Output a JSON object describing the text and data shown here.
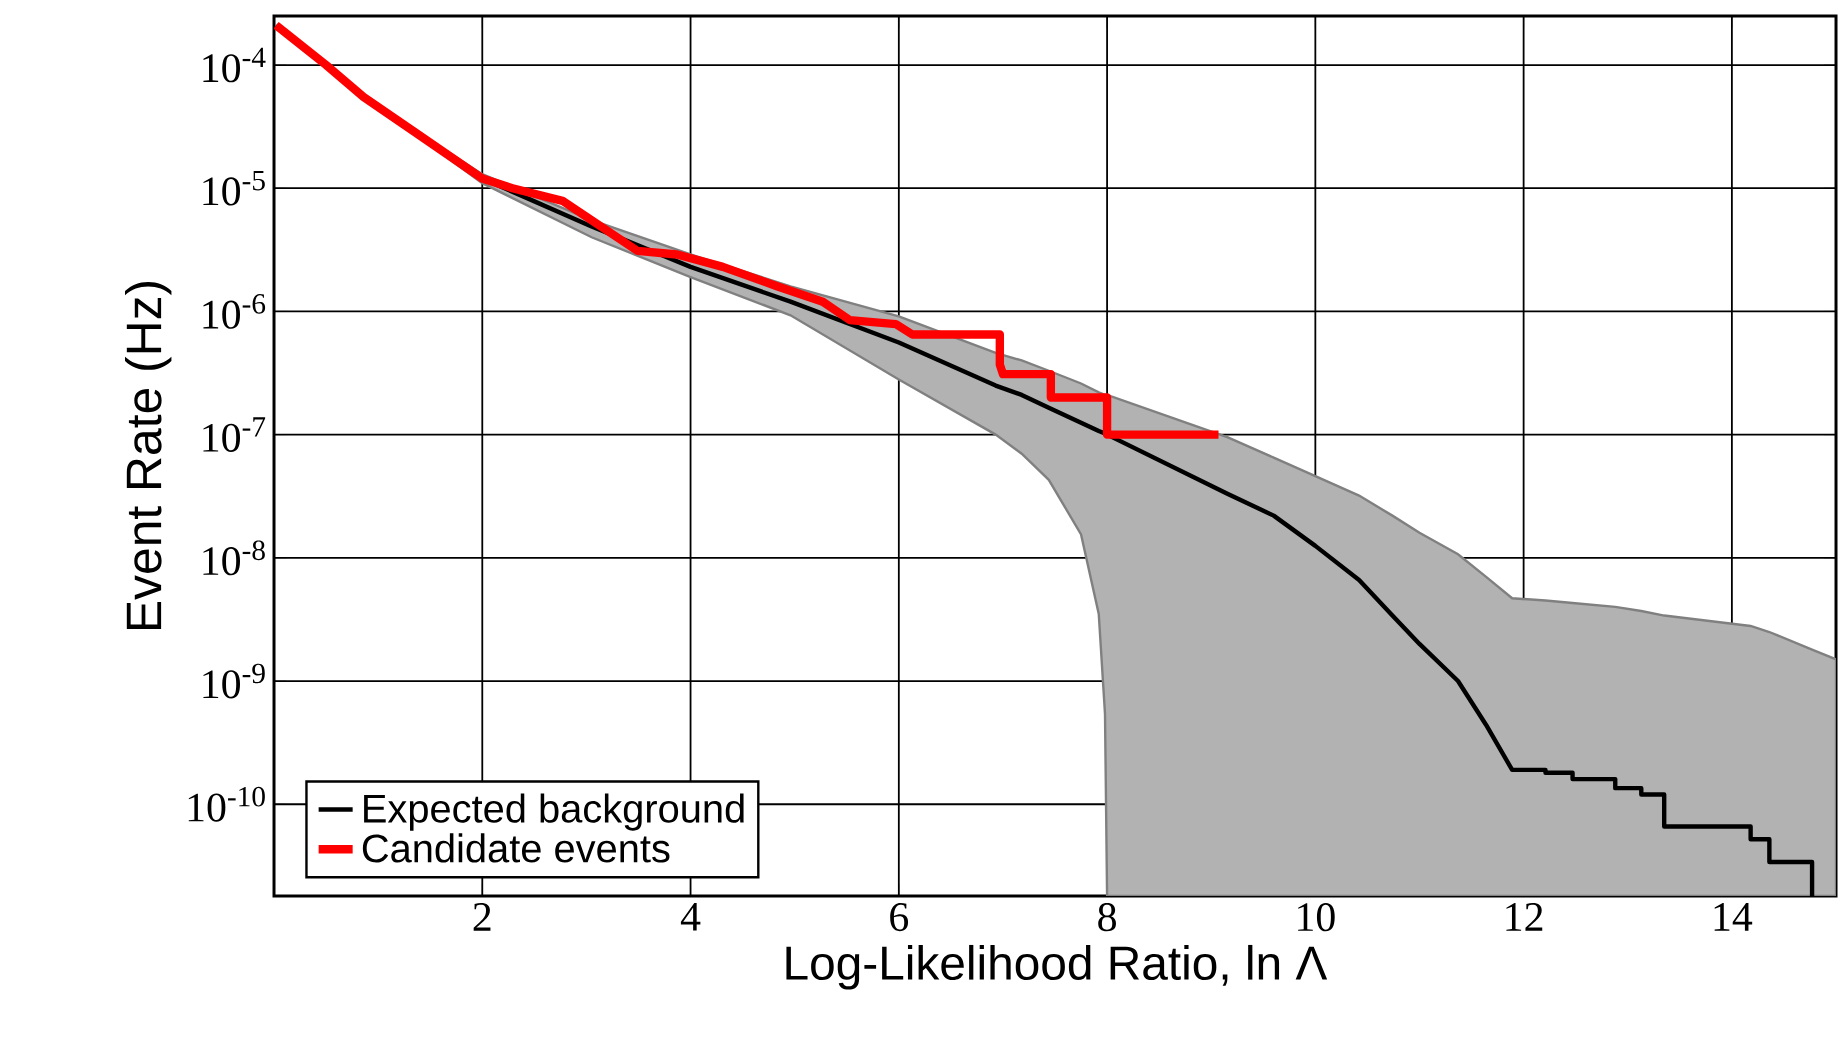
{
  "chart_data": {
    "type": "line",
    "xlabel": "Log-Likelihood Ratio, ln Λ",
    "ylabel": "Event Rate (Hz)",
    "xlim": [
      0,
      15
    ],
    "ylim": [
      1.8e-11,
      0.00025
    ],
    "log": "y",
    "grid": true,
    "legend": "bottom left",
    "xticks": [
      2,
      4,
      6,
      8,
      10,
      12,
      14
    ],
    "yticks": [
      {
        "value": 0.0001,
        "label": "10$^{-4}$"
      },
      {
        "value": 1e-05,
        "label": "10$^{-5}$"
      },
      {
        "value": 1e-06,
        "label": "10$^{-6}$"
      },
      {
        "value": 1e-07,
        "label": "10$^{-7}$"
      },
      {
        "value": 1e-08,
        "label": "10$^{-8}$"
      },
      {
        "value": 1e-09,
        "label": "10$^{-9}$"
      },
      {
        "value": 1e-10,
        "label": "10$^{-10}$"
      }
    ],
    "series": [
      {
        "name": "Expected background",
        "color": "#000000",
        "x": [
          0.02,
          0.5,
          0.86,
          1.34,
          2,
          3.05,
          4,
          4.96,
          6,
          6.93,
          7.18,
          7.44,
          7.75,
          7.92,
          7.98,
          8,
          9.16,
          9.6,
          10,
          10.42,
          10.74,
          11,
          11.37,
          11.64,
          11.89,
          12.21,
          12.21,
          12.47,
          12.47,
          12.88,
          12.88,
          13.13,
          13.13,
          13.35,
          13.35,
          14.18,
          14.18,
          14.36,
          14.36,
          14.77,
          14.77,
          15
        ],
        "values": [
          0.00021,
          0.0001,
          5.5e-05,
          2.9e-05,
          1.2e-05,
          4.9e-06,
          2.3e-06,
          1.2e-06,
          5.6e-07,
          2.5e-07,
          2.1e-07,
          1.65e-07,
          1.25e-07,
          1.07e-07,
          1.02e-07,
          1e-07,
          3.3e-08,
          2.2e-08,
          1.25e-08,
          6.6e-09,
          3.4e-09,
          2e-09,
          1e-09,
          4.4e-10,
          1.9e-10,
          1.9e-10,
          1.8e-10,
          1.8e-10,
          1.6e-10,
          1.6e-10,
          1.35e-10,
          1.35e-10,
          1.2e-10,
          1.2e-10,
          6.6e-11,
          6.6e-11,
          5.2e-11,
          5.2e-11,
          3.4e-11,
          3.4e-11,
          1.8e-11,
          null
        ],
        "lower": [
          0.00021,
          0.0001,
          5.4e-05,
          2.8e-05,
          1.1e-05,
          4e-06,
          1.9e-06,
          9.3e-07,
          2.8e-07,
          1e-07,
          7e-08,
          4.3e-08,
          1.55e-08,
          3.5e-09,
          5.4e-10,
          1.8e-11,
          1.8e-11,
          1.8e-11,
          1.8e-11,
          1.8e-11,
          1.8e-11,
          1.8e-11,
          1.8e-11,
          1.8e-11,
          1.8e-11,
          1.8e-11,
          1.8e-11,
          1.8e-11,
          1.8e-11,
          1.8e-11,
          1.8e-11,
          1.8e-11,
          1.8e-11,
          1.8e-11,
          1.8e-11,
          1.8e-11,
          1.8e-11,
          1.8e-11,
          1.8e-11,
          1.8e-11,
          1.8e-11,
          1.8e-11
        ],
        "upper": [
          0.00021,
          0.0001,
          5.6e-05,
          3e-05,
          1.3e-05,
          5.5e-06,
          2.9e-06,
          1.6e-06,
          9.1e-07,
          4.6e-07,
          4e-07,
          3.3e-07,
          2.6e-07,
          2.2e-07,
          2.1e-07,
          2.1e-07,
          9.5e-08,
          6.5e-08,
          4.6e-08,
          3.2e-08,
          2.2e-08,
          1.6e-08,
          1.07e-08,
          7e-09,
          4.7e-09,
          4.5e-09,
          4.5e-09,
          4.3e-09,
          4.3e-09,
          4e-09,
          4e-09,
          3.7e-09,
          3.7e-09,
          3.4e-09,
          3.4e-09,
          2.8e-09,
          2.8e-09,
          2.5e-09,
          2.5e-09,
          1.8e-09,
          1.8e-09,
          1.5e-09
        ]
      },
      {
        "name": "Candidate events",
        "color": "#ff0000",
        "x": [
          0.02,
          0.5,
          0.86,
          1.34,
          2,
          2.29,
          2.77,
          3.05,
          3.49,
          3.87,
          4.31,
          4.83,
          5.27,
          5.53,
          5.97,
          6.13,
          6.97,
          6.97,
          7.0,
          7.46,
          7.46,
          8.0,
          8.0,
          9.07
        ],
        "values": [
          0.00021,
          0.0001,
          5.5e-05,
          2.9e-05,
          1.2e-05,
          1e-05,
          7.9e-06,
          5.5e-06,
          3.1e-06,
          2.9e-06,
          2.3e-06,
          1.6e-06,
          1.2e-06,
          8.5e-07,
          7.9e-07,
          6.5e-07,
          6.5e-07,
          3.7e-07,
          3.1e-07,
          3.1e-07,
          2e-07,
          2e-07,
          1e-07,
          1e-07
        ]
      }
    ]
  }
}
